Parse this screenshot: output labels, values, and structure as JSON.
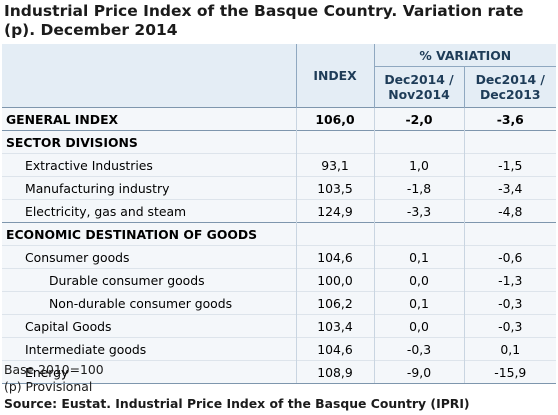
{
  "title": "Industrial Price Index of the Basque Country. Variation rate (p). December 2014",
  "header": {
    "index": "INDEX",
    "variation": "% VARIATION",
    "col1": "Dec2014 / Nov2014",
    "col2": "Dec2014 / Dec2013"
  },
  "rows": [
    {
      "label": "GENERAL INDEX",
      "index": "106,0",
      "v1": "-2,0",
      "v2": "-3,6"
    },
    {
      "label": "SECTOR DIVISIONS",
      "index": "",
      "v1": "",
      "v2": ""
    },
    {
      "label": "Extractive Industries",
      "index": "93,1",
      "v1": "1,0",
      "v2": "-1,5"
    },
    {
      "label": "Manufacturing industry",
      "index": "103,5",
      "v1": "-1,8",
      "v2": "-3,4"
    },
    {
      "label": "Electricity, gas and steam",
      "index": "124,9",
      "v1": "-3,3",
      "v2": "-4,8"
    },
    {
      "label": "ECONOMIC DESTINATION OF GOODS",
      "index": "",
      "v1": "",
      "v2": ""
    },
    {
      "label": "Consumer goods",
      "index": "104,6",
      "v1": "0,1",
      "v2": "-0,6"
    },
    {
      "label": "Durable consumer goods",
      "index": "100,0",
      "v1": "0,0",
      "v2": "-1,3"
    },
    {
      "label": "Non-durable consumer goods",
      "index": "106,2",
      "v1": "0,1",
      "v2": "-0,3"
    },
    {
      "label": "Capital Goods",
      "index": "103,4",
      "v1": "0,0",
      "v2": "-0,3"
    },
    {
      "label": "Intermediate goods",
      "index": "104,6",
      "v1": "-0,3",
      "v2": "0,1"
    },
    {
      "label": "Energy",
      "index": "108,9",
      "v1": "-9,0",
      "v2": "-15,9"
    }
  ],
  "notes": {
    "base": "Base 2010=100",
    "provisional": "(p) Provisional",
    "source": "Source: Eustat. Industrial Price Index of the Basque Country (IPRI)"
  }
}
